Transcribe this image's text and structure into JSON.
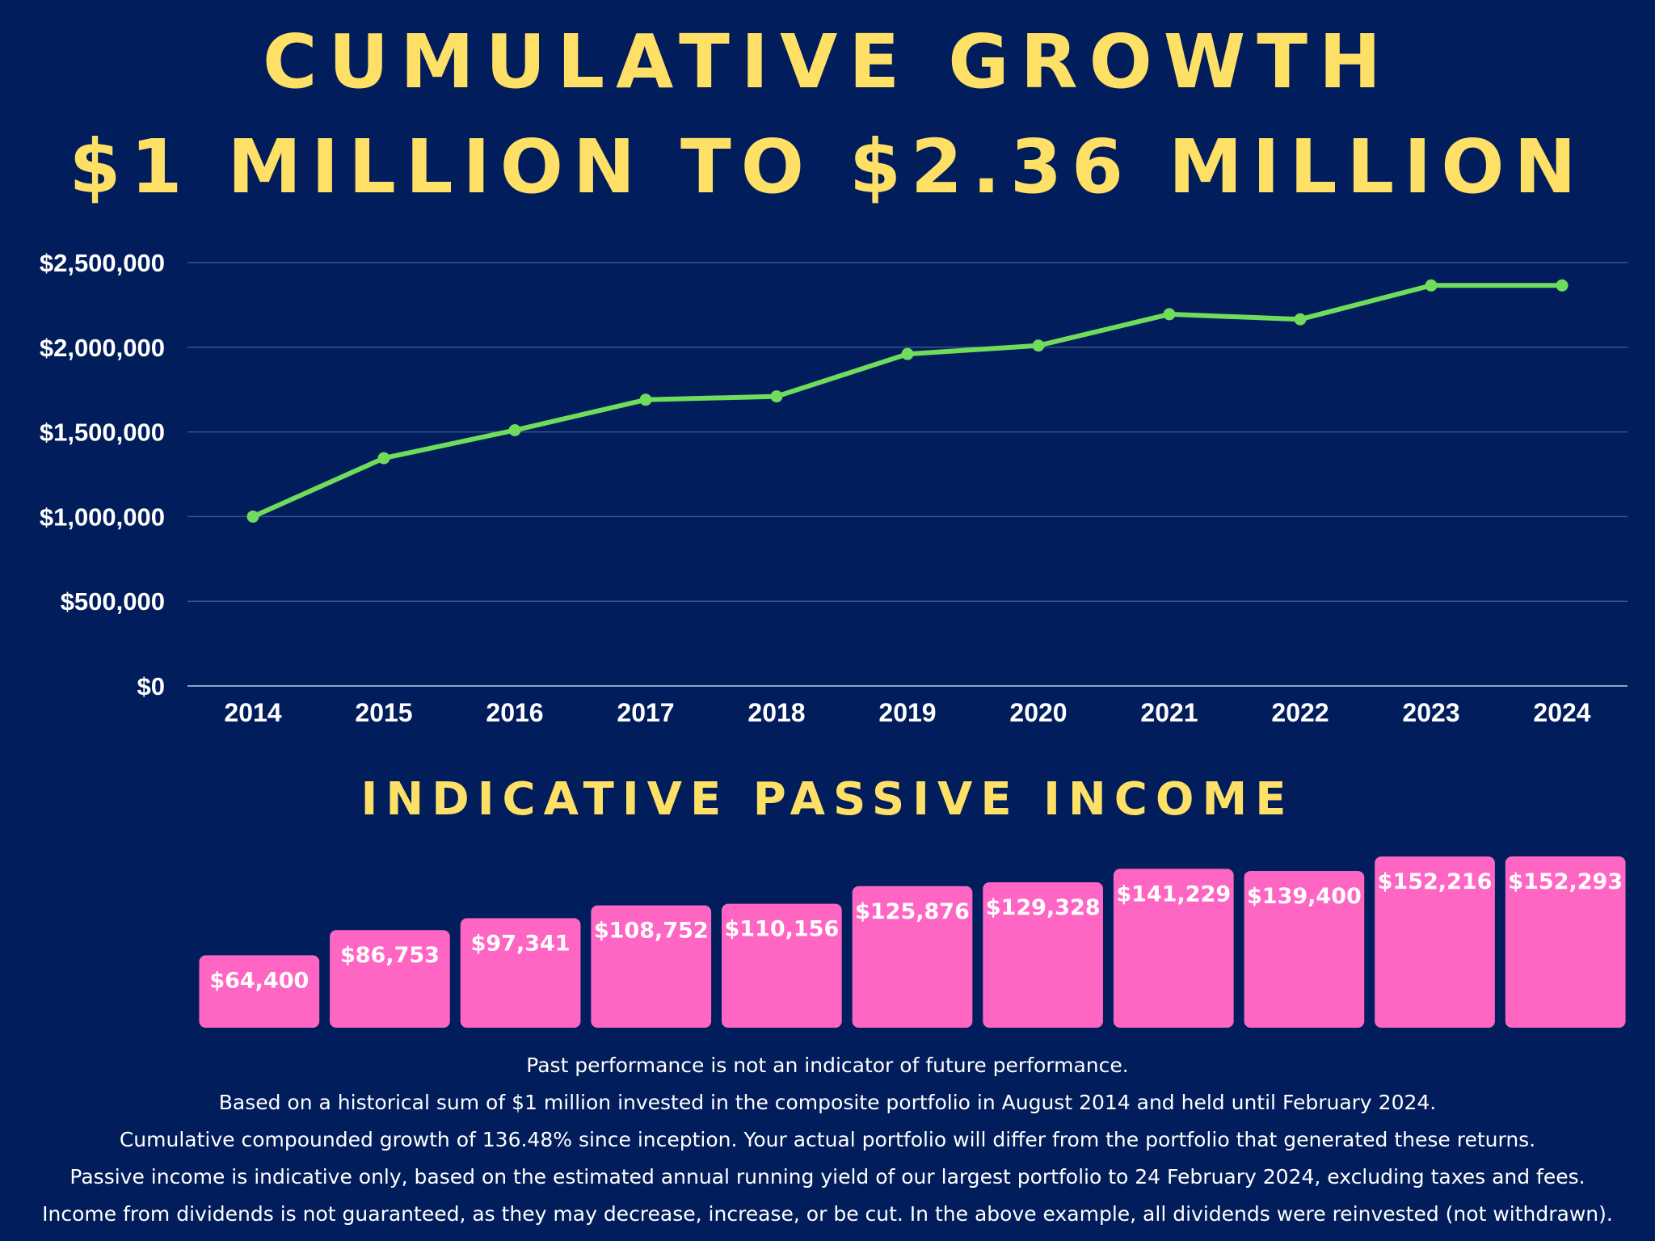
{
  "header": {
    "title_line1": "CUMULATIVE GROWTH",
    "title_line2": "$1 MILLION TO $2.36 MILLION"
  },
  "income_section": {
    "title": "INDICATIVE PASSIVE INCOME"
  },
  "colors": {
    "background": "#021d5b",
    "title": "#ffe066",
    "line": "#6fdc5c",
    "bar": "#ff66c4",
    "text": "#ffffff",
    "grid": "#3a5488"
  },
  "chart_data": [
    {
      "type": "line",
      "title": "",
      "x": [
        "2014",
        "2015",
        "2016",
        "2017",
        "2018",
        "2019",
        "2020",
        "2021",
        "2022",
        "2023",
        "2024"
      ],
      "series": [
        {
          "values": [
            1000000,
            1345000,
            1510000,
            1690000,
            1710000,
            1960000,
            2010000,
            2195000,
            2165000,
            2365000,
            2365000
          ]
        }
      ],
      "ylim": [
        0,
        2500000
      ],
      "yticks": [
        0,
        500000,
        1000000,
        1500000,
        2000000,
        2500000
      ],
      "ytick_labels": [
        "$0",
        "$500,000",
        "$1,000,000",
        "$1,500,000",
        "$2,000,000",
        "$2,500,000"
      ],
      "grid": true,
      "legend": "none"
    },
    {
      "type": "bar",
      "title": "INDICATIVE PASSIVE INCOME",
      "categories": [
        "2014",
        "2015",
        "2016",
        "2017",
        "2018",
        "2019",
        "2020",
        "2021",
        "2022",
        "2023",
        "2024"
      ],
      "values": [
        64400,
        86753,
        97341,
        108752,
        110156,
        125876,
        129328,
        141229,
        139400,
        152216,
        152293
      ],
      "labels": [
        "$64,400",
        "$86,753",
        "$97,341",
        "$108,752",
        "$110,156",
        "$125,876",
        "$129,328",
        "$141,229",
        "$139,400",
        "$152,216",
        "$152,293"
      ],
      "legend": "none"
    }
  ],
  "footnotes": [
    "Past performance is not an indicator of future performance.",
    "Based on a historical sum of $1 million invested in the composite portfolio in August 2014 and held until February 2024.",
    "Cumulative compounded growth of 136.48% since inception. Your actual portfolio will differ from the portfolio that generated these returns.",
    "Passive income is indicative only, based on the estimated annual running yield of our largest portfolio to 24 February 2024, excluding taxes and fees.",
    "Income from dividends is not guaranteed, as they may decrease, increase, or be cut. In the above example, all dividends were reinvested (not withdrawn)."
  ]
}
